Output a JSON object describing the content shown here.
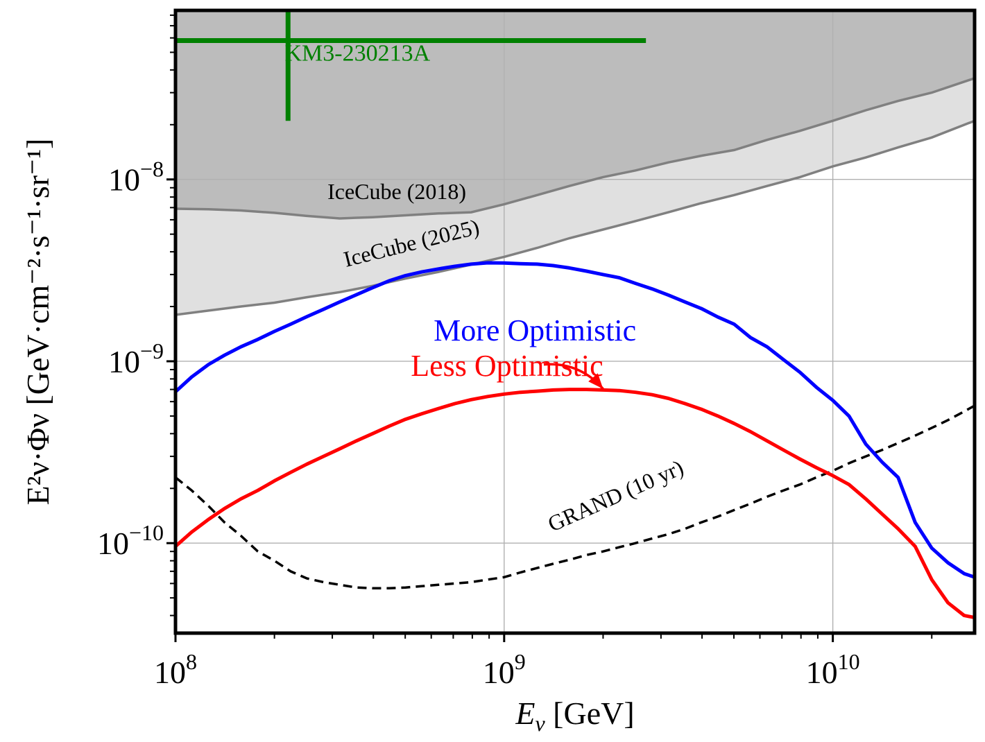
{
  "chart_data": {
    "type": "line",
    "xscale": "log",
    "yscale": "log",
    "xlim": [
      100000000.0,
      27000000000.0
    ],
    "ylim": [
      3.2e-11,
      8.5e-08
    ],
    "grid": true,
    "xlabel": {
      "symbol": "E",
      "sub": "ν",
      "unit": " [GeV]"
    },
    "ylabel": {
      "text": "E²ν·Φν [GeV·cm⁻²·s⁻¹·sr⁻¹]"
    },
    "xticks": [
      {
        "value": 100000000.0,
        "base": "10",
        "exp": "8"
      },
      {
        "value": 1000000000.0,
        "base": "10",
        "exp": "9"
      },
      {
        "value": 10000000000.0,
        "base": "10",
        "exp": "10"
      }
    ],
    "yticks": [
      {
        "value": 1e-10,
        "base": "10",
        "exp": "−10"
      },
      {
        "value": 1e-09,
        "base": "10",
        "exp": "−9"
      },
      {
        "value": 1e-08,
        "base": "10",
        "exp": "−8"
      }
    ],
    "colors": {
      "more": "#0000ff",
      "less": "#ff0000",
      "grand": "#000000",
      "icecube_line": "#808080",
      "ic2018_fill": "#bcbcbc",
      "ic2025_fill": "#e0e0e0",
      "km3": "#008000",
      "grid": "#b0b0b0"
    },
    "series": [
      {
        "name": "More Optimistic",
        "style": "solid",
        "x": [
          100000000.0,
          112000000.0,
          126000000.0,
          141000000.0,
          158000000.0,
          178000000.0,
          200000000.0,
          224000000.0,
          251000000.0,
          282000000.0,
          316000000.0,
          355000000.0,
          398000000.0,
          447000000.0,
          501000000.0,
          562000000.0,
          631000000.0,
          708000000.0,
          794000000.0,
          891000000.0,
          1000000000.0,
          1120000000.0,
          1260000000.0,
          1410000000.0,
          1580000000.0,
          1780000000.0,
          2000000000.0,
          2240000000.0,
          2510000000.0,
          2820000000.0,
          3160000000.0,
          3550000000.0,
          3980000000.0,
          4470000000.0,
          5010000000.0,
          5620000000.0,
          6310000000.0,
          7080000000.0,
          7940000000.0,
          8910000000.0,
          10000000000.0,
          11200000000.0,
          12600000000.0,
          14100000000.0,
          15800000000.0,
          17800000000.0,
          20000000000.0,
          22400000000.0,
          25100000000.0,
          27000000000.0
        ],
        "values": [
          6.8e-10,
          8.2e-10,
          9.6e-10,
          1.08e-09,
          1.2e-09,
          1.32e-09,
          1.46e-09,
          1.6e-09,
          1.76e-09,
          1.93e-09,
          2.12e-09,
          2.32e-09,
          2.54e-09,
          2.77e-09,
          2.96e-09,
          3.1e-09,
          3.22e-09,
          3.33e-09,
          3.42e-09,
          3.48e-09,
          3.47e-09,
          3.44e-09,
          3.42e-09,
          3.36e-09,
          3.26e-09,
          3.13e-09,
          3e-09,
          2.88e-09,
          2.68e-09,
          2.5e-09,
          2.31e-09,
          2.12e-09,
          1.95e-09,
          1.75e-09,
          1.6e-09,
          1.35e-09,
          1.2e-09,
          1.02e-09,
          8.7e-10,
          7.2e-10,
          6.1e-10,
          5e-10,
          3.5e-10,
          2.8e-10,
          2.3e-10,
          1.3e-10,
          9.4e-11,
          7.8e-11,
          6.8e-11,
          6.5e-11
        ]
      },
      {
        "name": "Less Optimistic",
        "style": "solid",
        "x": [
          100000000.0,
          112000000.0,
          126000000.0,
          141000000.0,
          158000000.0,
          178000000.0,
          200000000.0,
          224000000.0,
          251000000.0,
          282000000.0,
          316000000.0,
          355000000.0,
          398000000.0,
          447000000.0,
          501000000.0,
          562000000.0,
          631000000.0,
          708000000.0,
          794000000.0,
          891000000.0,
          1000000000.0,
          1120000000.0,
          1260000000.0,
          1410000000.0,
          1580000000.0,
          1780000000.0,
          2000000000.0,
          2240000000.0,
          2510000000.0,
          2820000000.0,
          3160000000.0,
          3550000000.0,
          3980000000.0,
          4470000000.0,
          5010000000.0,
          5620000000.0,
          6310000000.0,
          7080000000.0,
          7940000000.0,
          8910000000.0,
          10000000000.0,
          11200000000.0,
          12600000000.0,
          14100000000.0,
          15800000000.0,
          17800000000.0,
          20000000000.0,
          22400000000.0,
          25100000000.0,
          27000000000.0
        ],
        "values": [
          9.6e-11,
          1.15e-10,
          1.35e-10,
          1.55e-10,
          1.75e-10,
          1.95e-10,
          2.2e-10,
          2.45e-10,
          2.72e-10,
          3e-10,
          3.3e-10,
          3.65e-10,
          4e-10,
          4.4e-10,
          4.8e-10,
          5.15e-10,
          5.5e-10,
          5.85e-10,
          6.15e-10,
          6.4e-10,
          6.6e-10,
          6.75e-10,
          6.85e-10,
          6.95e-10,
          7e-10,
          7e-10,
          6.95e-10,
          6.9e-10,
          6.75e-10,
          6.55e-10,
          6.25e-10,
          5.85e-10,
          5.45e-10,
          5e-10,
          4.55e-10,
          4.1e-10,
          3.65e-10,
          3.25e-10,
          2.9e-10,
          2.6e-10,
          2.35e-10,
          2.1e-10,
          1.75e-10,
          1.45e-10,
          1.2e-10,
          9.6e-11,
          6.3e-11,
          4.7e-11,
          4e-11,
          3.9e-11
        ]
      },
      {
        "name": "GRAND (10 yr)",
        "style": "dashed",
        "x": [
          100000000.0,
          112000000.0,
          126000000.0,
          141000000.0,
          158000000.0,
          178000000.0,
          200000000.0,
          224000000.0,
          251000000.0,
          282000000.0,
          316000000.0,
          355000000.0,
          398000000.0,
          447000000.0,
          501000000.0,
          562000000.0,
          631000000.0,
          708000000.0,
          794000000.0,
          891000000.0,
          1000000000.0,
          1120000000.0,
          1260000000.0,
          1410000000.0,
          1580000000.0,
          1780000000.0,
          2000000000.0,
          2240000000.0,
          2510000000.0,
          2820000000.0,
          3160000000.0,
          3550000000.0,
          3980000000.0,
          4470000000.0,
          5010000000.0,
          5620000000.0,
          6310000000.0,
          7080000000.0,
          7940000000.0,
          8910000000.0,
          10000000000.0,
          11200000000.0,
          12600000000.0,
          14100000000.0,
          15800000000.0,
          17800000000.0,
          20000000000.0,
          22400000000.0,
          25100000000.0,
          27000000000.0
        ],
        "values": [
          2.3e-10,
          1.95e-10,
          1.6e-10,
          1.3e-10,
          1.1e-10,
          9e-11,
          8e-11,
          7e-11,
          6.4e-11,
          6.1e-11,
          5.9e-11,
          5.7e-11,
          5.65e-11,
          5.65e-11,
          5.7e-11,
          5.8e-11,
          5.9e-11,
          6e-11,
          6.1e-11,
          6.3e-11,
          6.5e-11,
          6.9e-11,
          7.3e-11,
          7.7e-11,
          8.1e-11,
          8.6e-11,
          9e-11,
          9.5e-11,
          1e-10,
          1.06e-10,
          1.12e-10,
          1.2e-10,
          1.3e-10,
          1.4e-10,
          1.52e-10,
          1.65e-10,
          1.8e-10,
          1.95e-10,
          2.1e-10,
          2.3e-10,
          2.5e-10,
          2.75e-10,
          3e-10,
          3.25e-10,
          3.55e-10,
          3.9e-10,
          4.3e-10,
          4.75e-10,
          5.3e-10,
          5.7e-10
        ]
      },
      {
        "name": "IceCube (2018)",
        "style": "limit",
        "x": [
          100000000.0,
          126000000.0,
          158000000.0,
          200000000.0,
          251000000.0,
          316000000.0,
          398000000.0,
          501000000.0,
          631000000.0,
          794000000.0,
          1000000000.0,
          1260000000.0,
          1580000000.0,
          2000000000.0,
          2510000000.0,
          3160000000.0,
          3980000000.0,
          5010000000.0,
          6310000000.0,
          7940000000.0,
          10000000000.0,
          12600000000.0,
          15800000000.0,
          20000000000.0,
          27000000000.0
        ],
        "values": [
          6.9e-09,
          6.85e-09,
          6.75e-09,
          6.55e-09,
          6.3e-09,
          6.1e-09,
          6.2e-09,
          6.35e-09,
          6.5e-09,
          6.6e-09,
          7.3e-09,
          8.2e-09,
          9.2e-09,
          1.03e-08,
          1.12e-08,
          1.24e-08,
          1.35e-08,
          1.45e-08,
          1.65e-08,
          1.85e-08,
          2.1e-08,
          2.4e-08,
          2.7e-08,
          3e-08,
          3.6e-08
        ]
      },
      {
        "name": "IceCube (2025)",
        "style": "limit",
        "x": [
          100000000.0,
          126000000.0,
          158000000.0,
          200000000.0,
          251000000.0,
          316000000.0,
          398000000.0,
          501000000.0,
          631000000.0,
          794000000.0,
          1000000000.0,
          1260000000.0,
          1580000000.0,
          2000000000.0,
          2510000000.0,
          3160000000.0,
          3980000000.0,
          5010000000.0,
          6310000000.0,
          7940000000.0,
          10000000000.0,
          12600000000.0,
          15800000000.0,
          20000000000.0,
          27000000000.0
        ],
        "values": [
          1.8e-09,
          1.9e-09,
          2e-09,
          2.1e-09,
          2.25e-09,
          2.4e-09,
          2.6e-09,
          2.85e-09,
          3.1e-09,
          3.4e-09,
          3.75e-09,
          4.2e-09,
          4.75e-09,
          5.3e-09,
          5.9e-09,
          6.6e-09,
          7.4e-09,
          8.2e-09,
          9.2e-09,
          1.03e-08,
          1.18e-08,
          1.32e-08,
          1.5e-08,
          1.7e-08,
          2.1e-08
        ]
      },
      {
        "name": "KM3-230213A",
        "style": "errorbar",
        "x": 220000000.0,
        "y": 5.8e-08,
        "x_range": [
          100000000.0,
          2700000000.0
        ],
        "y_range": [
          2.1e-08,
          8.5e-08
        ]
      }
    ],
    "annotations": [
      {
        "text": "KM3-230213A",
        "x": 215000000.0,
        "y": 4.5e-08,
        "color": "#008000",
        "size": 34,
        "rotate": 0
      },
      {
        "text": "IceCube (2018)",
        "x": 290000000.0,
        "y": 7.8e-09,
        "color": "#000000",
        "size": 32,
        "rotate": 0
      },
      {
        "text": "IceCube (2025)",
        "x": 330000000.0,
        "y": 3.3e-09,
        "color": "#000000",
        "size": 32,
        "rotate": -14
      },
      {
        "text": "More Optimistic",
        "x": 610000000.0,
        "y": 1.3e-09,
        "color": "#0000ff",
        "size": 44,
        "rotate": 0
      },
      {
        "text": "Less Optimistic",
        "x": 520000000.0,
        "y": 8.3e-10,
        "color": "#ff0000",
        "size": 44,
        "rotate": 0
      },
      {
        "text": "GRAND (10 yr)",
        "x": 1400000000.0,
        "y": 1.15e-10,
        "color": "#000000",
        "size": 32,
        "rotate": -24
      }
    ],
    "arrows": [
      {
        "color": "#0000ff",
        "from": [
          1240000000.0,
          1220000000.0
        ],
        "to": [
          1950000000.0,
          2950000000.0
        ]
      },
      {
        "color": "#ff0000",
        "from": [
          1320000000.0,
          9.6e-10
        ],
        "to": [
          2000000000.0,
          7.05e-10
        ]
      }
    ]
  }
}
